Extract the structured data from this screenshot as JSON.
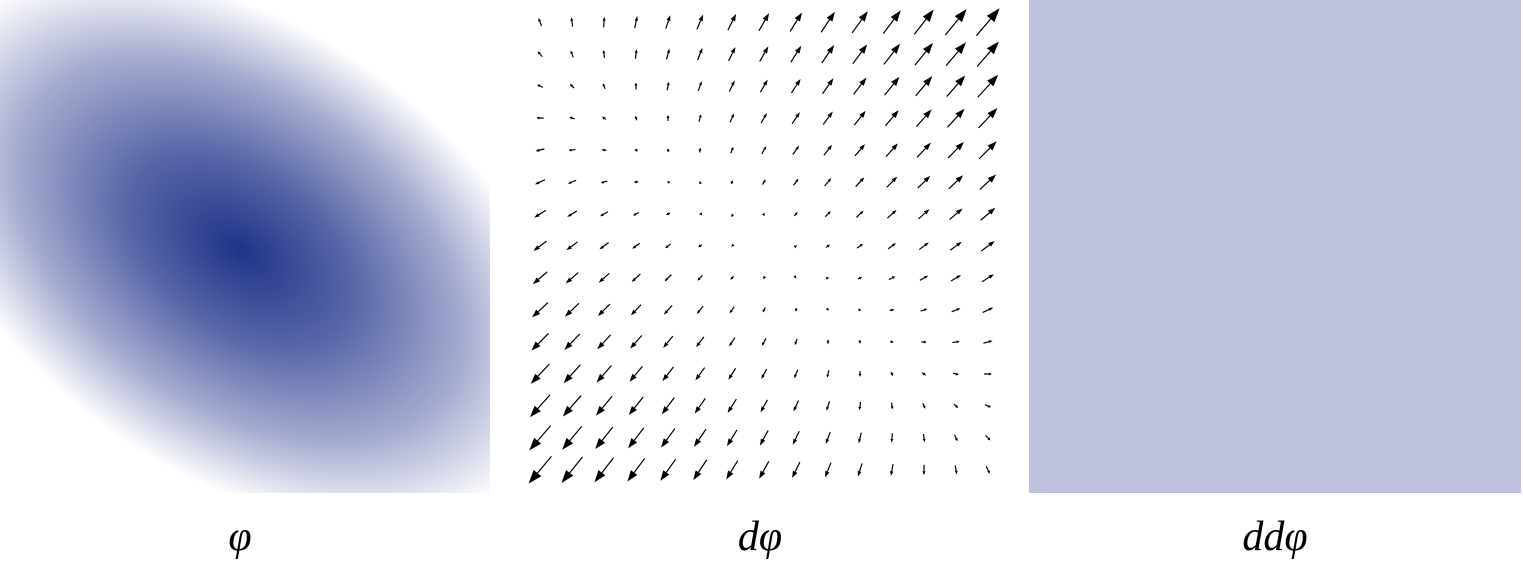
{
  "panels": [
    {
      "label": "φ"
    },
    {
      "label": "dφ"
    },
    {
      "label": "ddφ"
    }
  ]
}
